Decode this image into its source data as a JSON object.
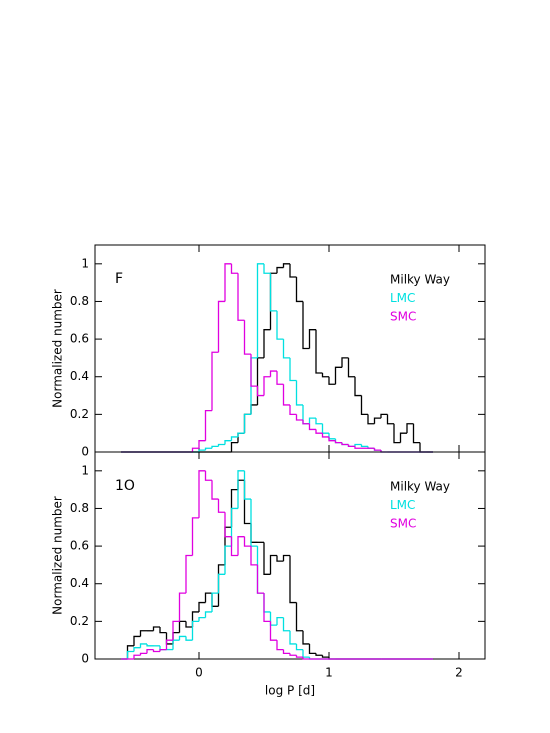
{
  "chart_data": [
    {
      "type": "histogram",
      "panel_label": "F",
      "ylabel": "Normalized number",
      "bins": [
        -0.6,
        -0.55,
        -0.5,
        -0.45,
        -0.4,
        -0.35,
        -0.3,
        -0.25,
        -0.2,
        -0.15,
        -0.1,
        -0.05,
        0,
        0.05,
        0.1,
        0.15,
        0.2,
        0.25,
        0.3,
        0.35,
        0.4,
        0.45,
        0.5,
        0.55,
        0.6,
        0.65,
        0.7,
        0.75,
        0.8,
        0.85,
        0.9,
        0.95,
        1,
        1.05,
        1.1,
        1.15,
        1.2,
        1.25,
        1.3,
        1.35,
        1.4,
        1.45,
        1.5,
        1.55,
        1.6,
        1.65,
        1.7,
        1.75,
        1.8
      ],
      "series": [
        {
          "name": "Milky Way",
          "color": "#000000",
          "values": [
            0,
            0,
            0,
            0,
            0,
            0,
            0,
            0,
            0,
            0,
            0,
            0,
            0,
            0,
            0,
            0,
            0,
            0.05,
            0.1,
            0.2,
            0.25,
            0.5,
            0.65,
            0.95,
            0.98,
            1.0,
            0.93,
            0.8,
            0.55,
            0.65,
            0.42,
            0.4,
            0.36,
            0.45,
            0.5,
            0.4,
            0.3,
            0.2,
            0.15,
            0.18,
            0.2,
            0.15,
            0.05,
            0.1,
            0.15,
            0.05,
            0,
            0
          ]
        },
        {
          "name": "LMC",
          "color": "#00e0e0",
          "values": [
            0,
            0,
            0,
            0,
            0,
            0,
            0,
            0,
            0,
            0,
            0,
            0,
            0.01,
            0.02,
            0.03,
            0.04,
            0.06,
            0.08,
            0.1,
            0.2,
            0.5,
            1.0,
            0.95,
            0.75,
            0.6,
            0.5,
            0.38,
            0.25,
            0.15,
            0.18,
            0.15,
            0.1,
            0.07,
            0.05,
            0.04,
            0.03,
            0.04,
            0.03,
            0.02,
            0.01,
            0,
            0,
            0,
            0,
            0,
            0,
            0,
            0
          ]
        },
        {
          "name": "SMC",
          "color": "#e000e0",
          "values": [
            0,
            0,
            0,
            0,
            0,
            0,
            0,
            0,
            0,
            0,
            0,
            0.02,
            0.06,
            0.22,
            0.53,
            0.8,
            1.0,
            0.95,
            0.7,
            0.52,
            0.35,
            0.3,
            0.4,
            0.43,
            0.36,
            0.25,
            0.2,
            0.17,
            0.15,
            0.12,
            0.1,
            0.08,
            0.06,
            0.05,
            0.04,
            0.03,
            0.02,
            0.02,
            0.02,
            0.01,
            0,
            0,
            0,
            0,
            0,
            0,
            0,
            0
          ]
        }
      ],
      "xlim": [
        -0.8,
        2.2
      ],
      "ylim": [
        0,
        1.1
      ],
      "xticks": [
        0,
        1,
        2
      ],
      "yticks": [
        0,
        0.2,
        0.4,
        0.6,
        0.8,
        1
      ]
    },
    {
      "type": "histogram",
      "panel_label": "1O",
      "ylabel": "Normalized number",
      "xlabel": "log P [d]",
      "bins": [
        -0.6,
        -0.55,
        -0.5,
        -0.45,
        -0.4,
        -0.35,
        -0.3,
        -0.25,
        -0.2,
        -0.15,
        -0.1,
        -0.05,
        0,
        0.05,
        0.1,
        0.15,
        0.2,
        0.25,
        0.3,
        0.35,
        0.4,
        0.45,
        0.5,
        0.55,
        0.6,
        0.65,
        0.7,
        0.75,
        0.8,
        0.85,
        0.9,
        0.95,
        1,
        1.05,
        1.1,
        1.15,
        1.2,
        1.25,
        1.3,
        1.35,
        1.4,
        1.45,
        1.5,
        1.55,
        1.6,
        1.65,
        1.7,
        1.75,
        1.8
      ],
      "series": [
        {
          "name": "Milky Way",
          "color": "#000000",
          "values": [
            0,
            0.07,
            0.12,
            0.15,
            0.15,
            0.17,
            0.14,
            0.08,
            0.14,
            0.2,
            0.17,
            0.25,
            0.3,
            0.35,
            0.28,
            0.5,
            0.7,
            0.9,
            0.95,
            0.72,
            0.62,
            0.62,
            0.45,
            0.55,
            0.52,
            0.55,
            0.3,
            0.15,
            0.08,
            0.03,
            0.02,
            0.01,
            0,
            0,
            0,
            0,
            0,
            0,
            0,
            0,
            0,
            0,
            0,
            0,
            0,
            0,
            0,
            0
          ]
        },
        {
          "name": "LMC",
          "color": "#00e0e0",
          "values": [
            0,
            0.04,
            0.06,
            0.08,
            0.07,
            0.07,
            0.05,
            0.05,
            0.1,
            0.12,
            0.1,
            0.2,
            0.22,
            0.25,
            0.35,
            0.45,
            0.6,
            0.8,
            1.0,
            0.85,
            0.6,
            0.35,
            0.25,
            0.18,
            0.22,
            0.15,
            0.08,
            0.05,
            0.01,
            0,
            0,
            0,
            0,
            0,
            0,
            0,
            0,
            0,
            0,
            0,
            0,
            0,
            0,
            0,
            0,
            0,
            0,
            0
          ]
        },
        {
          "name": "SMC",
          "color": "#e000e0",
          "values": [
            0,
            0,
            0.02,
            0.03,
            0.05,
            0.04,
            0.05,
            0.1,
            0.2,
            0.35,
            0.55,
            0.75,
            1.0,
            0.95,
            0.85,
            0.78,
            0.65,
            0.55,
            0.65,
            0.6,
            0.5,
            0.35,
            0.2,
            0.1,
            0.05,
            0.03,
            0.02,
            0.01,
            0,
            0,
            0,
            0,
            0,
            0,
            0,
            0,
            0,
            0,
            0,
            0,
            0,
            0,
            0,
            0,
            0,
            0,
            0,
            0
          ]
        }
      ],
      "xlim": [
        -0.8,
        2.2
      ],
      "ylim": [
        0,
        1.1
      ],
      "xticks": [
        0,
        1,
        2
      ],
      "yticks": [
        0,
        0.2,
        0.4,
        0.6,
        0.8,
        1
      ]
    }
  ]
}
